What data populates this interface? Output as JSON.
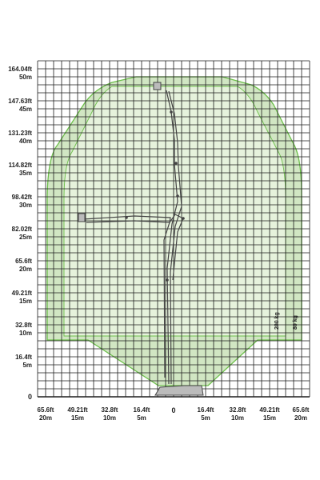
{
  "colors": {
    "grid": "#1e1e1e",
    "envelope_stroke": "#6cbf4a",
    "envelope_fill": "#e6f2dc",
    "envelope_band": "#c9e2b8",
    "boom": "#444444",
    "text": "#222222"
  },
  "y_axis_labels": [
    {
      "ft": "164.04ft",
      "m": "50m",
      "height_m": 50
    },
    {
      "ft": "147.63ft",
      "m": "45m",
      "height_m": 45
    },
    {
      "ft": "131.23ft",
      "m": "40m",
      "height_m": 40
    },
    {
      "ft": "114.82ft",
      "m": "35m",
      "height_m": 35
    },
    {
      "ft": "98.42ft",
      "m": "30m",
      "height_m": 30
    },
    {
      "ft": "82.02ft",
      "m": "25m",
      "height_m": 25
    },
    {
      "ft": "65.6ft",
      "m": "20m",
      "height_m": 20
    },
    {
      "ft": "49.21ft",
      "m": "15m",
      "height_m": 15
    },
    {
      "ft": "32.8ft",
      "m": "10m",
      "height_m": 10
    },
    {
      "ft": "16.4ft",
      "m": "5m",
      "height_m": 5
    }
  ],
  "y_zero_label": "0",
  "x_zero_label": "0",
  "x_axis_labels": [
    {
      "ft": "65.6ft",
      "m": "20m",
      "reach_m": -20
    },
    {
      "ft": "49.21ft",
      "m": "15m",
      "reach_m": -15
    },
    {
      "ft": "32.8ft",
      "m": "10m",
      "reach_m": -10
    },
    {
      "ft": "16.4ft",
      "m": "5m",
      "reach_m": -5
    },
    {
      "ft": "16.4ft",
      "m": "5m",
      "reach_m": 5
    },
    {
      "ft": "32.8ft",
      "m": "10m",
      "reach_m": 10
    },
    {
      "ft": "49.21ft",
      "m": "15m",
      "reach_m": 15
    },
    {
      "ft": "65.6ft",
      "m": "20m",
      "reach_m": 20
    }
  ],
  "capacity_labels": {
    "inner": "200 kg",
    "outer": "80 kg"
  }
}
